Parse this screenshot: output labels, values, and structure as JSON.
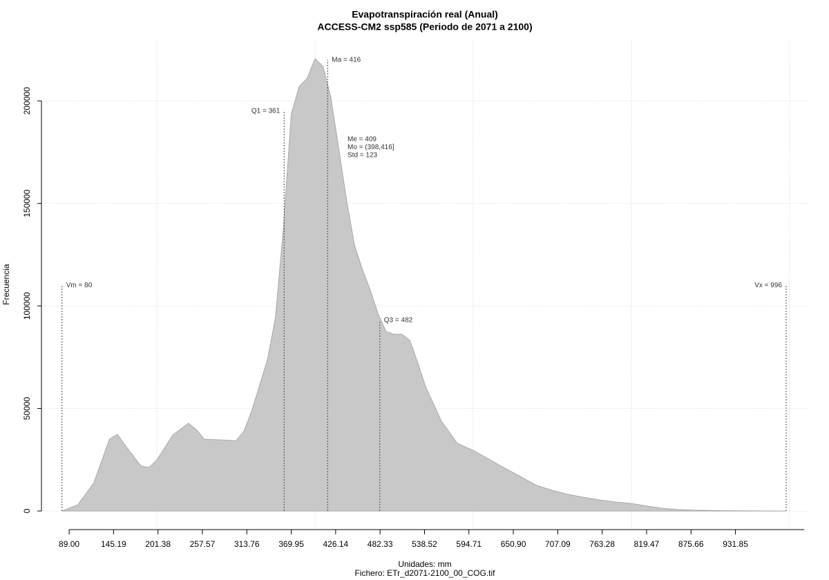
{
  "chart_data": {
    "type": "area",
    "title": "Evapotranspiración real (Anual)",
    "subtitle": "ACCESS-CM2 ssp585 (Periodo de 2071 a 2100)",
    "x_label": "Unidades: mm",
    "y_label": "Frecuencia",
    "footer": "Fichero: ETr_d2071-2100_00_COG.tif",
    "color": "#c8c8c8",
    "line_color": "#a8a8a8",
    "grid": true,
    "xgrid": [
      200,
      400,
      600,
      800,
      1000
    ],
    "xlim": [
      54,
      1024
    ],
    "ylim": [
      -8400,
      229000
    ],
    "xticks": [
      {
        "value": 89,
        "label": "89.00"
      },
      145.19,
      201.38,
      257.57,
      313.76,
      369.95,
      426.14,
      482.33,
      538.52,
      594.71,
      {
        "value": 650.9,
        "label": "650.90"
      },
      707.09,
      763.28,
      819.47,
      875.66,
      931.85
    ],
    "yticks": [
      0,
      50000,
      100000,
      150000,
      200000
    ],
    "x": [
      80,
      100,
      120,
      140,
      150,
      160,
      180,
      190,
      200,
      220,
      240,
      250,
      260,
      280,
      300,
      310,
      320,
      340,
      350,
      360,
      370,
      380,
      390,
      400,
      410,
      420,
      430,
      440,
      450,
      460,
      470,
      480,
      490,
      500,
      510,
      520,
      530,
      540,
      560,
      580,
      600,
      620,
      640,
      660,
      680,
      700,
      720,
      740,
      760,
      780,
      800,
      820,
      840,
      860,
      880,
      900,
      920,
      940,
      960,
      996
    ],
    "values": [
      0,
      3000,
      13500,
      35000,
      37400,
      32000,
      21900,
      21200,
      24900,
      37000,
      42800,
      39700,
      35000,
      34700,
      34300,
      38700,
      48800,
      74000,
      94300,
      138000,
      193600,
      207000,
      211000,
      220500,
      217000,
      202000,
      176800,
      151500,
      129600,
      117800,
      107700,
      96000,
      87500,
      86200,
      86200,
      83200,
      72400,
      60600,
      43800,
      33000,
      29600,
      25300,
      20900,
      16800,
      12500,
      10100,
      8100,
      6700,
      5400,
      4400,
      3700,
      2400,
      1300,
      700,
      400,
      300,
      150,
      100,
      50,
      0
    ],
    "markers": [
      {
        "label": "Vm = 80",
        "x": 80,
        "y": 110000,
        "side": "right"
      },
      {
        "label": "Q1 = 361",
        "x": 361,
        "y": 195000,
        "side": "left"
      },
      {
        "label": "Ma = 416",
        "x": 416,
        "y": 220000,
        "side": "right"
      },
      {
        "label": "Q3 = 482",
        "x": 482,
        "y": 93000,
        "side": "right"
      },
      {
        "label": "Vx = 996",
        "x": 996,
        "y": 110000,
        "side": "left"
      }
    ],
    "stats": [
      "Me = 409",
      "Mo = (398,416]",
      "Std = 123"
    ]
  }
}
